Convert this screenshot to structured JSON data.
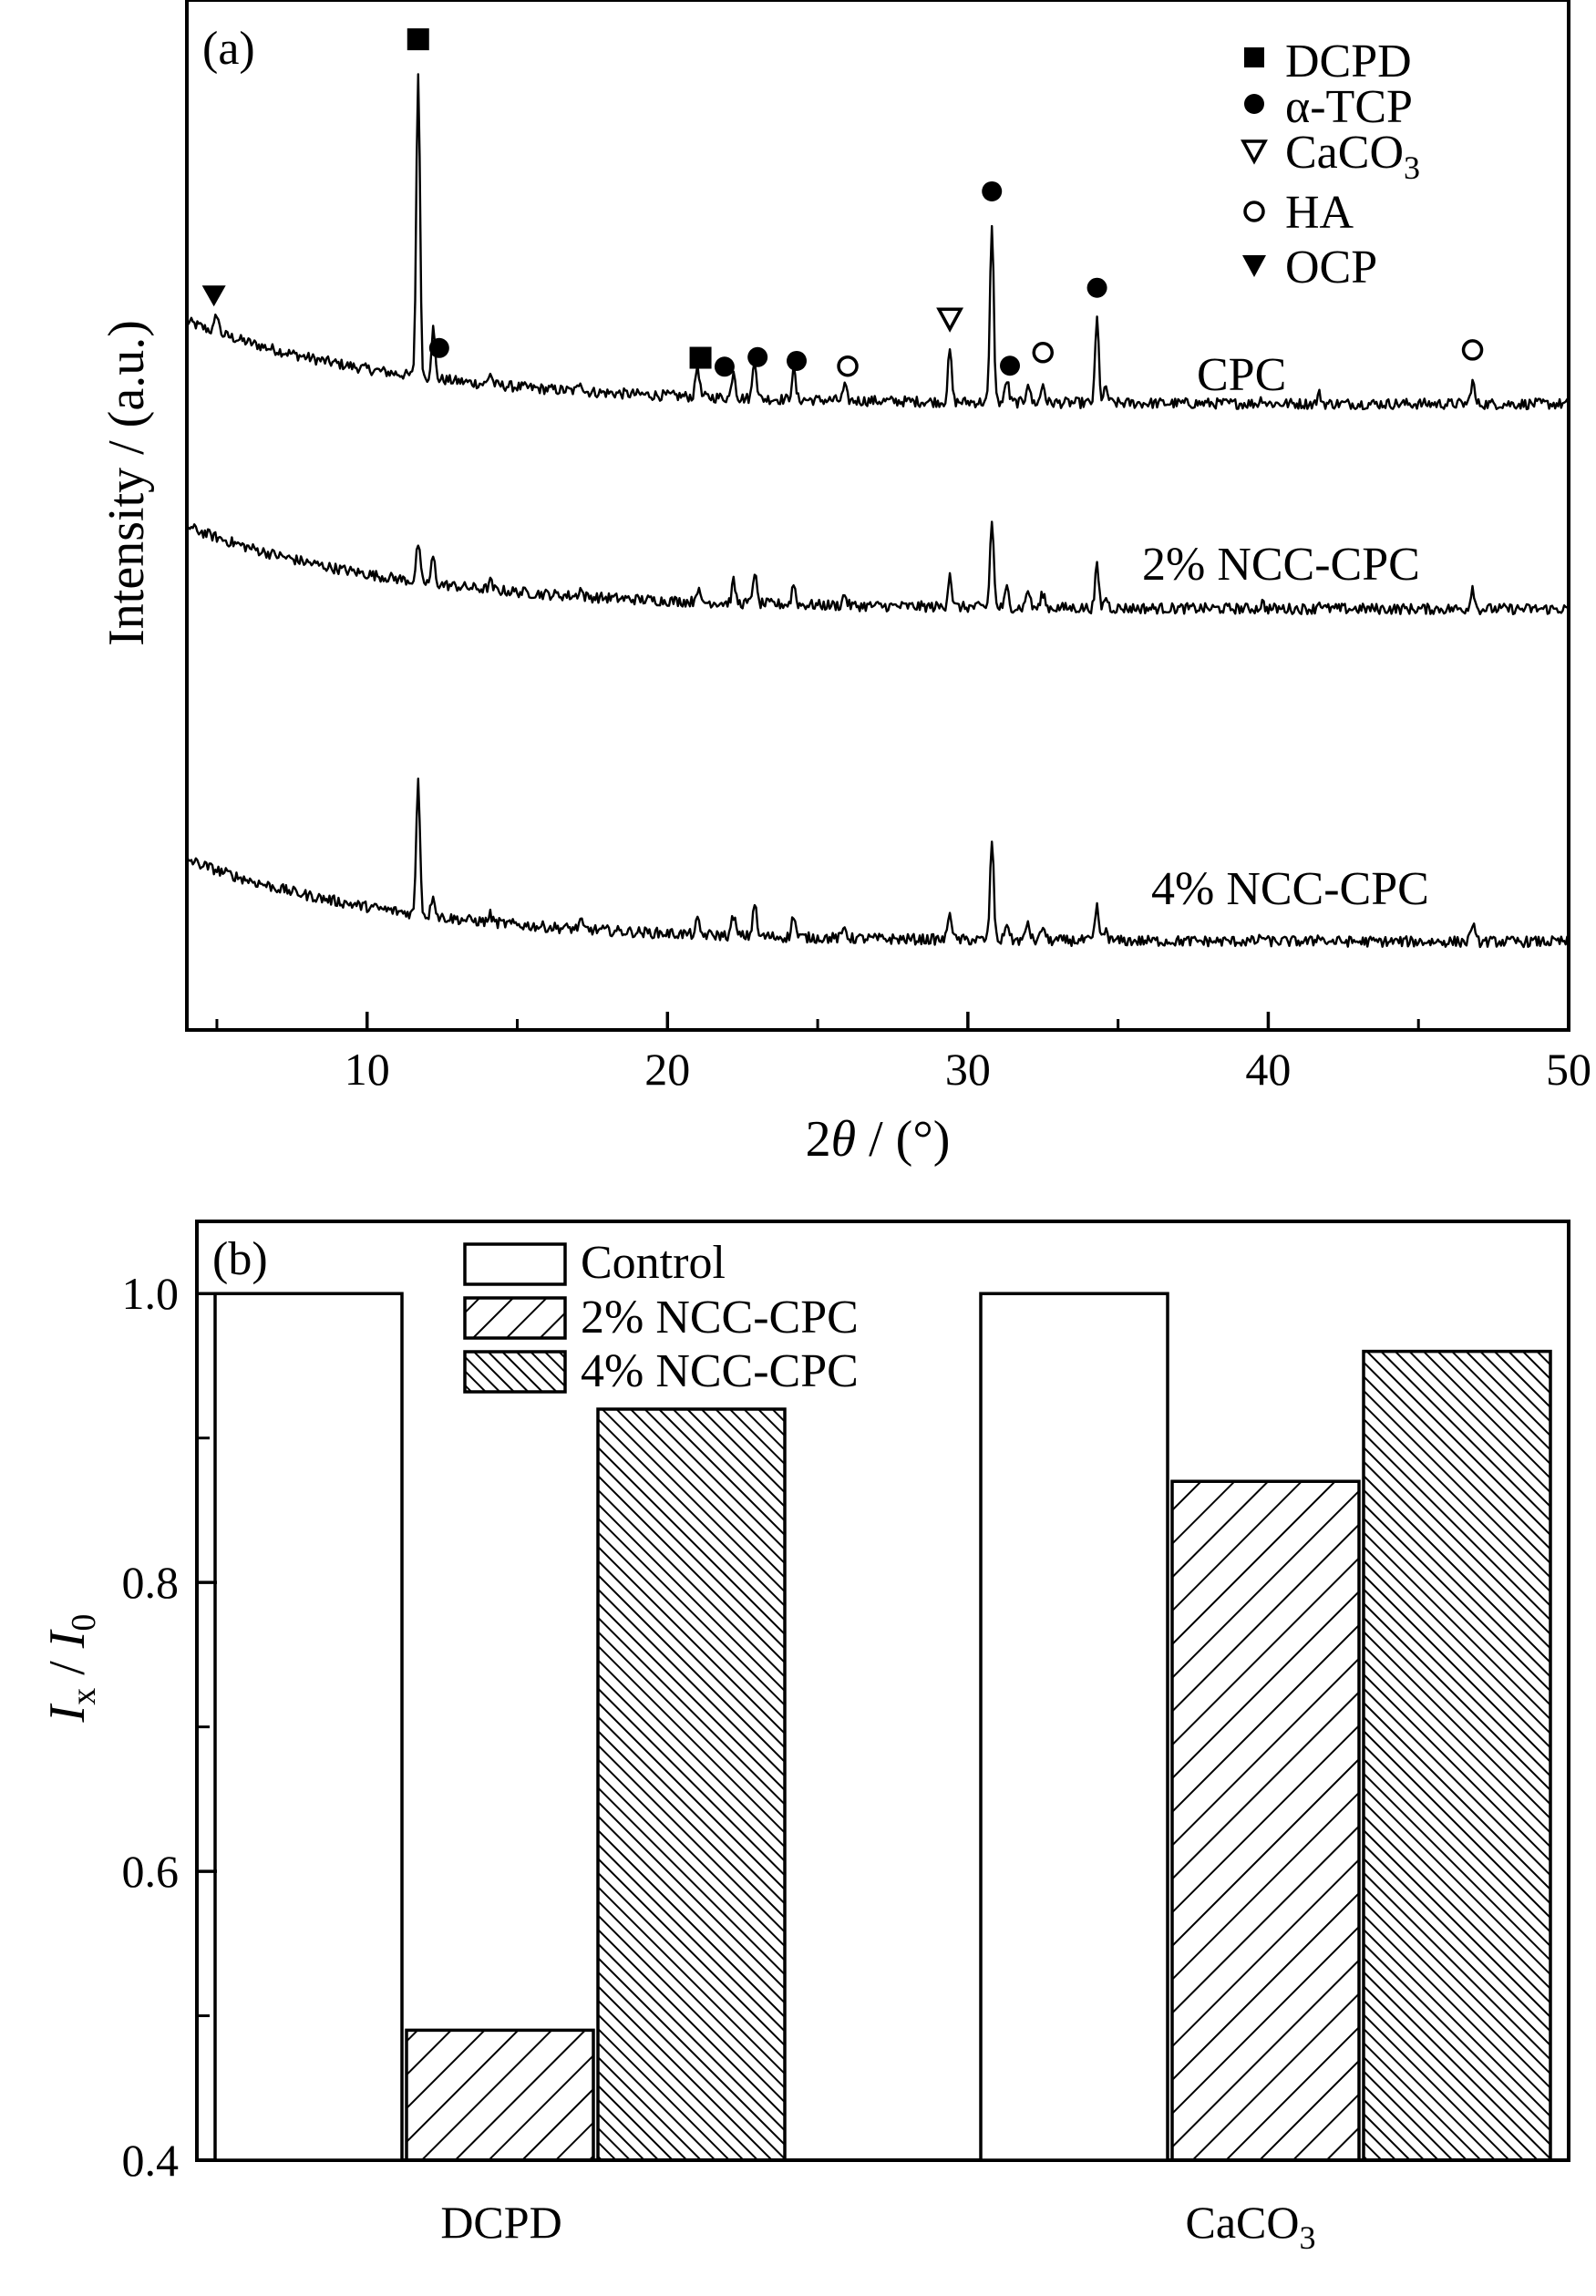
{
  "chart_data": [
    {
      "panel": "(a)",
      "type": "line",
      "xlabel_prefix": "2",
      "xlabel_var": "θ",
      "xlabel_suffix": " / (°)",
      "ylabel": "Intensity / (a.u.)",
      "xlim": [
        4,
        50
      ],
      "xticks": [
        10,
        20,
        30,
        40,
        50
      ],
      "y_ticks_shown": false,
      "legend_position": "top-right",
      "legend": [
        {
          "name": "DCPD",
          "marker": "filled-square"
        },
        {
          "name": "α-TCP",
          "marker": "filled-circle"
        },
        {
          "name_main": "CaCO",
          "name_sub": "3",
          "marker": "open-triangle-down"
        },
        {
          "name": "HA",
          "marker": "open-circle"
        },
        {
          "name": "OCP",
          "marker": "filled-triangle-down"
        }
      ],
      "series": [
        {
          "name": "CPC",
          "start": 2.2,
          "end": 0.04
        },
        {
          "name": "2% NCC-CPC",
          "start": 2.2,
          "end": 0.04
        },
        {
          "name": "4% NCC-CPC",
          "start": 2.2,
          "end": 0.04
        }
      ],
      "peaks": [
        {
          "x": 5.0,
          "h": [
            0.5,
            0.0,
            0.0
          ]
        },
        {
          "x": 11.7,
          "h": [
            8.0,
            1.0,
            3.6
          ]
        },
        {
          "x": 12.2,
          "h": [
            1.3,
            0.7,
            0.6
          ]
        },
        {
          "x": 14.1,
          "h": [
            0.3,
            0.2,
            0.2
          ]
        },
        {
          "x": 17.1,
          "h": [
            0.3,
            0.2,
            0.2
          ]
        },
        {
          "x": 21.0,
          "h": [
            0.85,
            0.35,
            0.35
          ]
        },
        {
          "x": 22.2,
          "h": [
            0.75,
            0.55,
            0.55
          ]
        },
        {
          "x": 22.9,
          "h": [
            1.1,
            0.85,
            0.9
          ]
        },
        {
          "x": 24.2,
          "h": [
            0.8,
            0.55,
            0.6
          ]
        },
        {
          "x": 25.9,
          "h": [
            0.35,
            0.3,
            0.3
          ]
        },
        {
          "x": 29.4,
          "h": [
            1.35,
            0.9,
            0.8
          ]
        },
        {
          "x": 30.8,
          "h": [
            4.7,
            2.3,
            2.6
          ]
        },
        {
          "x": 31.3,
          "h": [
            0.6,
            0.5,
            0.5
          ]
        },
        {
          "x": 32.0,
          "h": [
            0.55,
            0.5,
            0.5
          ]
        },
        {
          "x": 32.5,
          "h": [
            0.5,
            0.4,
            0.4
          ]
        },
        {
          "x": 34.3,
          "h": [
            2.2,
            1.1,
            0.9
          ]
        },
        {
          "x": 34.6,
          "h": [
            0.4,
            0.3,
            0.3
          ]
        },
        {
          "x": 39.8,
          "h": [
            0.15,
            0.15,
            0.15
          ]
        },
        {
          "x": 41.7,
          "h": [
            0.25,
            0.2,
            0.2
          ]
        },
        {
          "x": 46.8,
          "h": [
            0.6,
            0.6,
            0.5
          ]
        }
      ],
      "peak_markers": [
        {
          "x": 11.7,
          "marker": "filled-square"
        },
        {
          "x": 12.4,
          "marker": "filled-circle"
        },
        {
          "x": 4.9,
          "marker": "filled-triangle-down"
        },
        {
          "x": 21.1,
          "marker": "filled-square"
        },
        {
          "x": 21.9,
          "marker": "filled-circle"
        },
        {
          "x": 23.0,
          "marker": "filled-circle"
        },
        {
          "x": 24.3,
          "marker": "filled-circle"
        },
        {
          "x": 26.0,
          "marker": "open-circle"
        },
        {
          "x": 29.4,
          "marker": "open-triangle-down"
        },
        {
          "x": 30.8,
          "marker": "filled-circle"
        },
        {
          "x": 31.4,
          "marker": "filled-circle"
        },
        {
          "x": 32.5,
          "marker": "open-circle"
        },
        {
          "x": 34.3,
          "marker": "filled-circle"
        },
        {
          "x": 46.8,
          "marker": "open-circle"
        }
      ]
    },
    {
      "panel": "(b)",
      "type": "bar",
      "ylabel_main": "I",
      "ylabel_sub1": "x",
      "ylabel_sep": " / ",
      "ylabel_main2": "I",
      "ylabel_sub2": "0",
      "ylim": [
        0.4,
        1.05
      ],
      "yticks": [
        "0.4",
        "0.6",
        "0.8",
        "1.0"
      ],
      "categories": [
        {
          "main": "DCPD",
          "sub": ""
        },
        {
          "main": "CaCO",
          "sub": "3"
        }
      ],
      "legend_position": "top-center",
      "series": [
        {
          "name": "Control",
          "pattern": "none",
          "values": [
            1.0,
            1.0
          ]
        },
        {
          "name": "2% NCC-CPC",
          "pattern": "hatch-sparse",
          "values": [
            0.49,
            0.87
          ]
        },
        {
          "name": "4% NCC-CPC",
          "pattern": "hatch-dense",
          "values": [
            0.92,
            0.96
          ]
        }
      ]
    }
  ]
}
